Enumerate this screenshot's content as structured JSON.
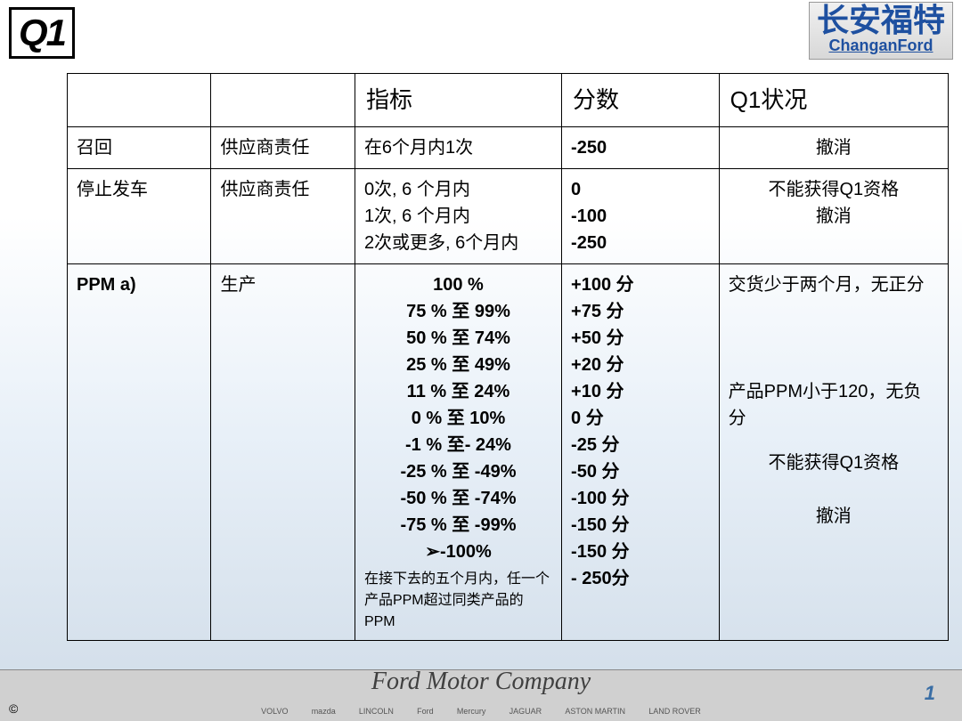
{
  "logo": {
    "q1": "Q1"
  },
  "company": {
    "cn": "长安福特",
    "en": "ChanganFord"
  },
  "table": {
    "headers": {
      "c1": "",
      "c2": "",
      "c3": "指标",
      "c4": "分数",
      "c5": "Q1状况"
    },
    "row1": {
      "c1": "召回",
      "c2": "供应商责任",
      "c3": "在6个月内1次",
      "c4": "-250",
      "c5": "撤消"
    },
    "row2": {
      "c1": "停止发车",
      "c2": "供应商责任",
      "c3": "0次, 6 个月内\n1次, 6 个月内\n2次或更多, 6个月内",
      "c4": "0\n-100\n-250",
      "c5": "不能获得Q1资格\n撤消"
    },
    "row3": {
      "c1": "PPM a)",
      "c2": "生产",
      "indicators": [
        "100 %",
        "75 % 至 99%",
        "50 % 至 74%",
        "25 % 至 49%",
        "11 % 至 24%",
        "0 %  至 10%",
        "-1 %  至- 24%",
        "-25 % 至 -49%",
        "-50 % 至 -74%",
        "-75 %  至 -99%",
        "➢-100%"
      ],
      "indicator_note": "在接下去的五个月内，任一个产品PPM超过同类产品的PPM",
      "scores": [
        "+100 分",
        "+75 分",
        "+50 分",
        "+20 分",
        "+10 分",
        "0 分",
        "-25 分",
        "-50 分",
        "-100 分",
        "-150 分",
        "-150 分",
        "- 250分"
      ],
      "q1_note1": "交货少于两个月，无正分",
      "q1_note2": "产品PPM小于120，无负分",
      "q1_note3": "不能获得Q1资格",
      "q1_note4": "撤消"
    }
  },
  "footer": {
    "ford_script": "Ford Motor Company",
    "copyright": "©",
    "brands": [
      "VOLVO",
      "mazda",
      "LINCOLN",
      "Ford",
      "Mercury",
      "JAGUAR",
      "ASTON MARTIN",
      "LAND ROVER"
    ],
    "page": "1"
  }
}
